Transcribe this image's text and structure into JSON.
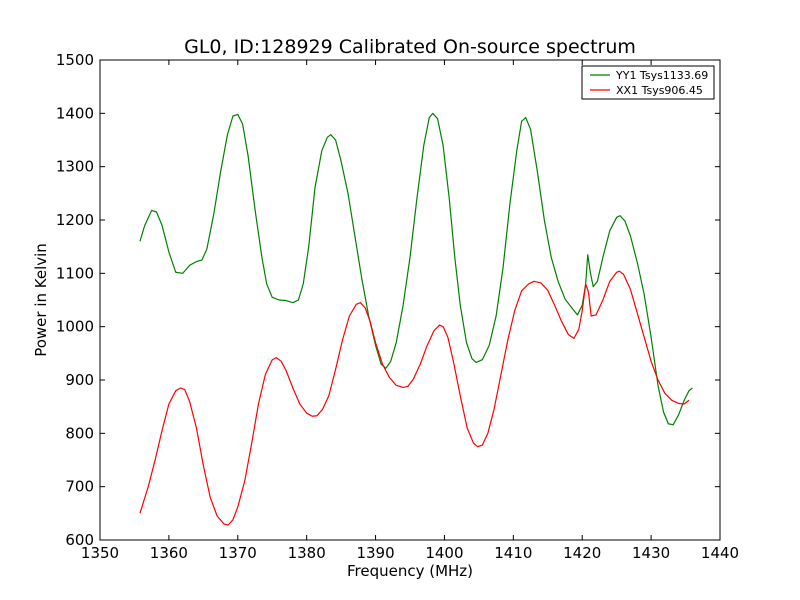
{
  "chart_data": {
    "type": "line",
    "title": "GL0, ID:128929 Calibrated On-source spectrum",
    "xlabel": "Frequency (MHz)",
    "ylabel": "Power in Kelvin",
    "xlim": [
      1350,
      1440
    ],
    "ylim": [
      600,
      1500
    ],
    "xticks": [
      1350,
      1360,
      1370,
      1380,
      1390,
      1400,
      1410,
      1420,
      1430,
      1440
    ],
    "yticks": [
      600,
      700,
      800,
      900,
      1000,
      1100,
      1200,
      1300,
      1400,
      1500
    ],
    "grid": false,
    "legend_position": "top-right",
    "series": [
      {
        "name": "YY1 Tsys1133.69",
        "color": "#008000",
        "points": [
          [
            1355.8,
            1160
          ],
          [
            1356.5,
            1190
          ],
          [
            1357.5,
            1218
          ],
          [
            1358.2,
            1215
          ],
          [
            1359,
            1190
          ],
          [
            1360,
            1140
          ],
          [
            1361,
            1102
          ],
          [
            1362,
            1100
          ],
          [
            1363,
            1115
          ],
          [
            1364,
            1122
          ],
          [
            1364.8,
            1125
          ],
          [
            1365.5,
            1145
          ],
          [
            1366.5,
            1210
          ],
          [
            1367.5,
            1290
          ],
          [
            1368.5,
            1360
          ],
          [
            1369.3,
            1395
          ],
          [
            1370,
            1398
          ],
          [
            1370.7,
            1380
          ],
          [
            1371.5,
            1320
          ],
          [
            1372.5,
            1220
          ],
          [
            1373.5,
            1130
          ],
          [
            1374.2,
            1080
          ],
          [
            1375,
            1055
          ],
          [
            1376,
            1050
          ],
          [
            1377,
            1049
          ],
          [
            1378,
            1045
          ],
          [
            1378.8,
            1050
          ],
          [
            1379.5,
            1080
          ],
          [
            1380.3,
            1150
          ],
          [
            1381.2,
            1260
          ],
          [
            1382.2,
            1330
          ],
          [
            1383,
            1355
          ],
          [
            1383.5,
            1360
          ],
          [
            1384.2,
            1350
          ],
          [
            1385,
            1310
          ],
          [
            1386,
            1250
          ],
          [
            1387,
            1170
          ],
          [
            1388,
            1090
          ],
          [
            1389,
            1020
          ],
          [
            1390,
            965
          ],
          [
            1390.8,
            930
          ],
          [
            1391.5,
            922
          ],
          [
            1392.2,
            935
          ],
          [
            1393,
            970
          ],
          [
            1394,
            1040
          ],
          [
            1395,
            1130
          ],
          [
            1396,
            1240
          ],
          [
            1397,
            1340
          ],
          [
            1397.8,
            1392
          ],
          [
            1398.3,
            1400
          ],
          [
            1399,
            1390
          ],
          [
            1399.8,
            1340
          ],
          [
            1400.7,
            1240
          ],
          [
            1401.5,
            1130
          ],
          [
            1402.3,
            1040
          ],
          [
            1403.2,
            970
          ],
          [
            1404,
            940
          ],
          [
            1404.6,
            933
          ],
          [
            1405.5,
            938
          ],
          [
            1406.5,
            965
          ],
          [
            1407.5,
            1020
          ],
          [
            1408.5,
            1110
          ],
          [
            1409.5,
            1230
          ],
          [
            1410.5,
            1330
          ],
          [
            1411.2,
            1385
          ],
          [
            1411.8,
            1392
          ],
          [
            1412.5,
            1370
          ],
          [
            1413.5,
            1290
          ],
          [
            1414.5,
            1200
          ],
          [
            1415.5,
            1130
          ],
          [
            1416.5,
            1085
          ],
          [
            1417.5,
            1052
          ],
          [
            1418.5,
            1035
          ],
          [
            1419.3,
            1022
          ],
          [
            1420,
            1040
          ],
          [
            1420.5,
            1080
          ],
          [
            1420.8,
            1135
          ],
          [
            1421.2,
            1100
          ],
          [
            1421.6,
            1075
          ],
          [
            1422.2,
            1085
          ],
          [
            1423,
            1130
          ],
          [
            1424,
            1180
          ],
          [
            1425,
            1205
          ],
          [
            1425.5,
            1208
          ],
          [
            1426.2,
            1198
          ],
          [
            1427,
            1170
          ],
          [
            1428,
            1120
          ],
          [
            1429,
            1060
          ],
          [
            1430,
            980
          ],
          [
            1431,
            890
          ],
          [
            1431.8,
            840
          ],
          [
            1432.5,
            818
          ],
          [
            1433.2,
            816
          ],
          [
            1434,
            835
          ],
          [
            1434.8,
            862
          ],
          [
            1435.5,
            880
          ],
          [
            1436,
            885
          ]
        ]
      },
      {
        "name": "XX1 Tsys906.45",
        "color": "#ff0000",
        "points": [
          [
            1355.8,
            650
          ],
          [
            1357,
            700
          ],
          [
            1358,
            750
          ],
          [
            1359,
            805
          ],
          [
            1360,
            855
          ],
          [
            1361,
            880
          ],
          [
            1361.7,
            885
          ],
          [
            1362.3,
            882
          ],
          [
            1363,
            860
          ],
          [
            1364,
            810
          ],
          [
            1365,
            740
          ],
          [
            1366,
            680
          ],
          [
            1367,
            645
          ],
          [
            1368,
            630
          ],
          [
            1368.6,
            628
          ],
          [
            1369.3,
            638
          ],
          [
            1370,
            662
          ],
          [
            1371,
            710
          ],
          [
            1372,
            780
          ],
          [
            1373,
            855
          ],
          [
            1374,
            910
          ],
          [
            1375,
            938
          ],
          [
            1375.6,
            942
          ],
          [
            1376.3,
            935
          ],
          [
            1377,
            918
          ],
          [
            1378,
            885
          ],
          [
            1379,
            855
          ],
          [
            1380,
            838
          ],
          [
            1380.8,
            832
          ],
          [
            1381.5,
            833
          ],
          [
            1382.3,
            845
          ],
          [
            1383.2,
            870
          ],
          [
            1384.2,
            920
          ],
          [
            1385.2,
            975
          ],
          [
            1386.2,
            1020
          ],
          [
            1387.2,
            1042
          ],
          [
            1387.8,
            1045
          ],
          [
            1388.5,
            1035
          ],
          [
            1389.2,
            1010
          ],
          [
            1390,
            970
          ],
          [
            1391,
            930
          ],
          [
            1392,
            905
          ],
          [
            1393,
            890
          ],
          [
            1394,
            886
          ],
          [
            1394.7,
            888
          ],
          [
            1395.5,
            902
          ],
          [
            1396.5,
            930
          ],
          [
            1397.5,
            965
          ],
          [
            1398.5,
            993
          ],
          [
            1399.3,
            1003
          ],
          [
            1399.8,
            1000
          ],
          [
            1400.5,
            980
          ],
          [
            1401.3,
            935
          ],
          [
            1402.3,
            870
          ],
          [
            1403.3,
            810
          ],
          [
            1404.2,
            782
          ],
          [
            1404.8,
            775
          ],
          [
            1405.5,
            778
          ],
          [
            1406.3,
            800
          ],
          [
            1407.2,
            845
          ],
          [
            1408.2,
            910
          ],
          [
            1409.2,
            975
          ],
          [
            1410.2,
            1030
          ],
          [
            1411.2,
            1067
          ],
          [
            1412.2,
            1080
          ],
          [
            1413,
            1085
          ],
          [
            1414,
            1082
          ],
          [
            1415,
            1068
          ],
          [
            1416,
            1040
          ],
          [
            1417,
            1010
          ],
          [
            1418,
            985
          ],
          [
            1418.8,
            978
          ],
          [
            1419.5,
            995
          ],
          [
            1420,
            1030
          ],
          [
            1420.5,
            1080
          ],
          [
            1420.9,
            1065
          ],
          [
            1421.3,
            1020
          ],
          [
            1422,
            1022
          ],
          [
            1423,
            1050
          ],
          [
            1424,
            1085
          ],
          [
            1425,
            1102
          ],
          [
            1425.4,
            1104
          ],
          [
            1426,
            1098
          ],
          [
            1427,
            1070
          ],
          [
            1428,
            1025
          ],
          [
            1429,
            980
          ],
          [
            1430,
            935
          ],
          [
            1431,
            900
          ],
          [
            1432,
            875
          ],
          [
            1433,
            862
          ],
          [
            1434,
            856
          ],
          [
            1434.8,
            855
          ],
          [
            1435.5,
            862
          ]
        ]
      }
    ]
  }
}
